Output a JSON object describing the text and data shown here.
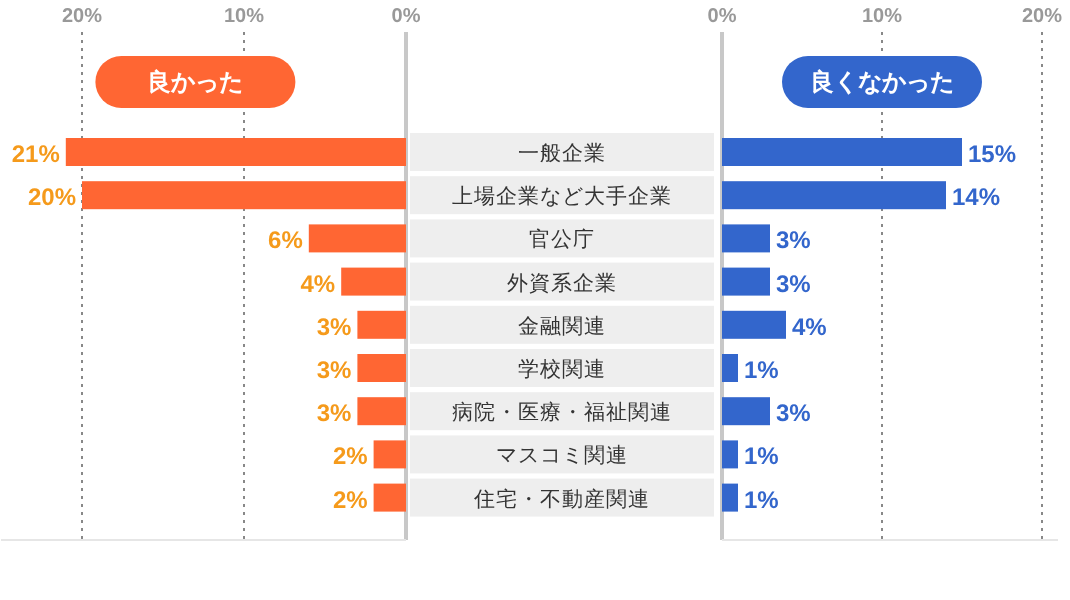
{
  "chart_data": [
    {
      "type": "bar",
      "orientation": "horizontal",
      "title": "良かった",
      "categories": [
        "一般企業",
        "上場企業など大手企業",
        "官公庁",
        "外資系企業",
        "金融関連",
        "学校関連",
        "病院・医療・福祉関連",
        "マスコミ関連",
        "住宅・不動産関連"
      ],
      "series": [
        {
          "color": "#ff6633",
          "values": [
            21,
            20,
            6,
            4,
            3,
            3,
            3,
            2,
            2
          ],
          "value_labels": [
            "21%",
            "20%",
            "6%",
            "4%",
            "3%",
            "3%",
            "3%",
            "2%",
            "2%"
          ]
        }
      ],
      "xlim": [
        25,
        0
      ],
      "xticks": [
        {
          "value": 20,
          "label": "20%"
        },
        {
          "value": 10,
          "label": "10%"
        },
        {
          "value": 0,
          "label": "0%"
        }
      ],
      "grid": "x"
    },
    {
      "type": "bar",
      "orientation": "horizontal",
      "title": "良くなかった",
      "series": [
        {
          "color": "#3366cc",
          "values": [
            15,
            14,
            3,
            3,
            4,
            1,
            3,
            1,
            1
          ],
          "value_labels": [
            "15%",
            "14%",
            "3%",
            "3%",
            "4%",
            "1%",
            "3%",
            "1%",
            "1%"
          ]
        }
      ],
      "xlim": [
        0,
        21
      ],
      "xticks": [
        {
          "value": 0,
          "label": "0%"
        },
        {
          "value": 10,
          "label": "10%"
        },
        {
          "value": 20,
          "label": "20%"
        }
      ],
      "grid": "x"
    }
  ]
}
